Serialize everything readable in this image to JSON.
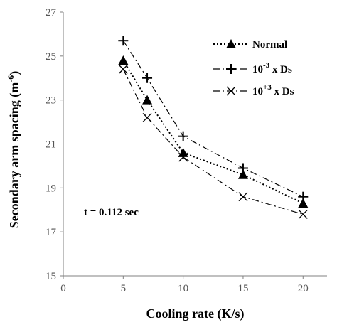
{
  "chart_data": {
    "type": "line",
    "xlabel": "Cooling rate (K/s)",
    "ylabel_base": "Secondary arm spacing (m",
    "ylabel_exp": "-6",
    "ylabel_tail": ")",
    "xlim": [
      0,
      22
    ],
    "ylim": [
      15,
      27
    ],
    "x_ticks": [
      0,
      5,
      10,
      15,
      20
    ],
    "y_ticks": [
      15,
      17,
      19,
      21,
      23,
      25,
      27
    ],
    "grid": false,
    "legend_position": "top-right",
    "annotation": "t = 0.112 sec",
    "x": [
      5,
      7,
      10,
      15,
      20
    ],
    "series": [
      {
        "legend_text": "Normal",
        "marker": "triangle",
        "line": "dotted",
        "values": [
          24.8,
          23.0,
          20.6,
          19.6,
          18.3
        ]
      },
      {
        "legend_base": "10",
        "legend_exp": "-3",
        "legend_tail": " x Ds",
        "marker": "plus",
        "line": "dash-dot",
        "values": [
          25.7,
          24.0,
          21.35,
          19.9,
          18.6
        ]
      },
      {
        "legend_base": "10",
        "legend_exp": "+3",
        "legend_tail": " x Ds",
        "marker": "cross",
        "line": "dash-dot",
        "values": [
          24.4,
          22.2,
          20.4,
          18.6,
          17.8
        ]
      }
    ],
    "colors": {
      "axis": "#808080",
      "line": "#000000"
    }
  }
}
